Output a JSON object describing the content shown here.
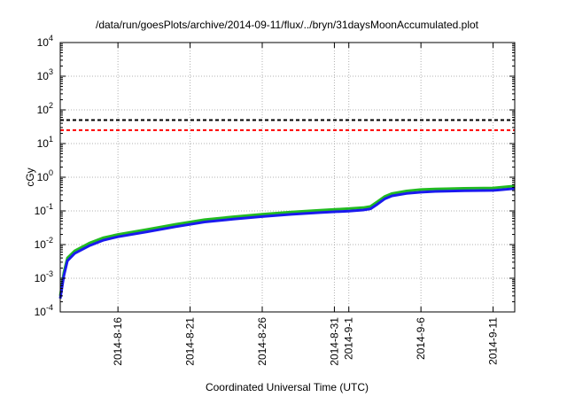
{
  "chart_data": {
    "type": "line",
    "title": "/data/run/goesPlots/archive/2014-09-11/flux/../bryn/31daysMoonAccumulated.plot",
    "xlabel": "Coordinated Universal Time (UTC)",
    "ylabel": "cGy",
    "y_scale": "log",
    "ylim": [
      0.0001,
      10000
    ],
    "xlim": [
      "2014-08-12",
      "2014-09-12T12:00"
    ],
    "grid": true,
    "x_ticks": [
      {
        "date": "2014-08-16",
        "label": "2014-8-16"
      },
      {
        "date": "2014-08-21",
        "label": "2014-8-21"
      },
      {
        "date": "2014-08-26",
        "label": "2014-8-26"
      },
      {
        "date": "2014-08-31",
        "label": "2014-8-31"
      },
      {
        "date": "2014-09-01",
        "label": "2014-9-1"
      },
      {
        "date": "2014-09-06",
        "label": "2014-9-6"
      },
      {
        "date": "2014-09-11",
        "label": "2014-9-11"
      }
    ],
    "y_ticks": [
      {
        "value": 0.0001,
        "base": "10",
        "exp": "-4"
      },
      {
        "value": 0.001,
        "base": "10",
        "exp": "-3"
      },
      {
        "value": 0.01,
        "base": "10",
        "exp": "-2"
      },
      {
        "value": 0.1,
        "base": "10",
        "exp": "-1"
      },
      {
        "value": 1,
        "base": "10",
        "exp": "0"
      },
      {
        "value": 10,
        "base": "10",
        "exp": "1"
      },
      {
        "value": 100,
        "base": "10",
        "exp": "2"
      },
      {
        "value": 1000,
        "base": "10",
        "exp": "3"
      },
      {
        "value": 10000,
        "base": "10",
        "exp": "4"
      }
    ],
    "thresholds": [
      {
        "value": 50,
        "color": "#000000"
      },
      {
        "value": 25,
        "color": "#ff0000"
      }
    ],
    "series": [
      {
        "color": "#22bb22",
        "points": [
          [
            "2014-08-12",
            0.0003
          ],
          [
            "2014-08-12T06:00",
            0.0015
          ],
          [
            "2014-08-12T12:00",
            0.004
          ],
          [
            "2014-08-13",
            0.0065
          ],
          [
            "2014-08-14",
            0.011
          ],
          [
            "2014-08-15",
            0.016
          ],
          [
            "2014-08-16",
            0.02
          ],
          [
            "2014-08-18",
            0.028
          ],
          [
            "2014-08-20",
            0.04
          ],
          [
            "2014-08-22",
            0.055
          ],
          [
            "2014-08-24",
            0.067
          ],
          [
            "2014-08-26",
            0.08
          ],
          [
            "2014-08-28",
            0.093
          ],
          [
            "2014-08-30",
            0.105
          ],
          [
            "2014-09-01",
            0.117
          ],
          [
            "2014-09-02",
            0.125
          ],
          [
            "2014-09-02T12:00",
            0.135
          ],
          [
            "2014-09-03",
            0.19
          ],
          [
            "2014-09-03T12:00",
            0.27
          ],
          [
            "2014-09-04",
            0.33
          ],
          [
            "2014-09-05",
            0.39
          ],
          [
            "2014-09-06",
            0.43
          ],
          [
            "2014-09-07",
            0.45
          ],
          [
            "2014-09-09",
            0.47
          ],
          [
            "2014-09-11",
            0.48
          ],
          [
            "2014-09-11T12:00",
            0.5
          ],
          [
            "2014-09-12T12:00",
            0.55
          ]
        ]
      },
      {
        "color": "#1a1aee",
        "points": [
          [
            "2014-08-12",
            0.00025
          ],
          [
            "2014-08-12T06:00",
            0.0012
          ],
          [
            "2014-08-12T12:00",
            0.0033
          ],
          [
            "2014-08-13",
            0.0055
          ],
          [
            "2014-08-14",
            0.0092
          ],
          [
            "2014-08-15",
            0.0135
          ],
          [
            "2014-08-16",
            0.017
          ],
          [
            "2014-08-18",
            0.024
          ],
          [
            "2014-08-20",
            0.034
          ],
          [
            "2014-08-22",
            0.047
          ],
          [
            "2014-08-24",
            0.057
          ],
          [
            "2014-08-26",
            0.068
          ],
          [
            "2014-08-28",
            0.079
          ],
          [
            "2014-08-30",
            0.089
          ],
          [
            "2014-09-01",
            0.099
          ],
          [
            "2014-09-02",
            0.106
          ],
          [
            "2014-09-02T12:00",
            0.115
          ],
          [
            "2014-09-03",
            0.16
          ],
          [
            "2014-09-03T12:00",
            0.23
          ],
          [
            "2014-09-04",
            0.28
          ],
          [
            "2014-09-05",
            0.33
          ],
          [
            "2014-09-06",
            0.36
          ],
          [
            "2014-09-07",
            0.38
          ],
          [
            "2014-09-09",
            0.395
          ],
          [
            "2014-09-11",
            0.405
          ],
          [
            "2014-09-11T12:00",
            0.42
          ],
          [
            "2014-09-12T12:00",
            0.46
          ]
        ]
      }
    ]
  }
}
